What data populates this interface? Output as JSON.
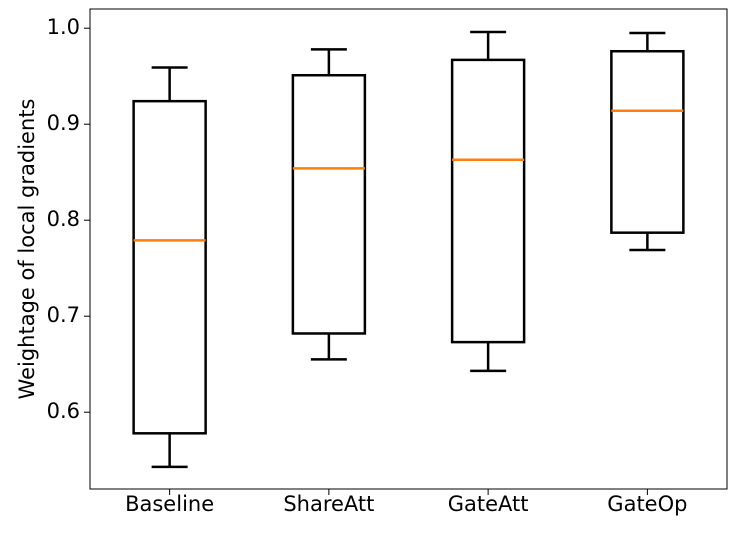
{
  "chart_data": {
    "type": "box",
    "title": "",
    "xlabel": "",
    "ylabel": "Weightage of local gradients",
    "ylim": [
      0.52,
      1.02
    ],
    "yticks": [
      "0.6",
      "0.7",
      "0.8",
      "0.9",
      "1.0"
    ],
    "grid": false,
    "categories": [
      "Baseline",
      "ShareAtt",
      "GateAtt",
      "GateOp"
    ],
    "boxes": [
      {
        "name": "Baseline",
        "whisker_low": 0.543,
        "q1": 0.578,
        "median": 0.779,
        "q3": 0.924,
        "whisker_high": 0.959
      },
      {
        "name": "ShareAtt",
        "whisker_low": 0.655,
        "q1": 0.682,
        "median": 0.854,
        "q3": 0.951,
        "whisker_high": 0.978
      },
      {
        "name": "GateAtt",
        "whisker_low": 0.643,
        "q1": 0.673,
        "median": 0.863,
        "q3": 0.967,
        "whisker_high": 0.996
      },
      {
        "name": "GateOp",
        "whisker_low": 0.769,
        "q1": 0.787,
        "median": 0.914,
        "q3": 0.976,
        "whisker_high": 0.995
      }
    ],
    "colors": {
      "box": "#000000",
      "median": "#ff7f0e"
    }
  }
}
